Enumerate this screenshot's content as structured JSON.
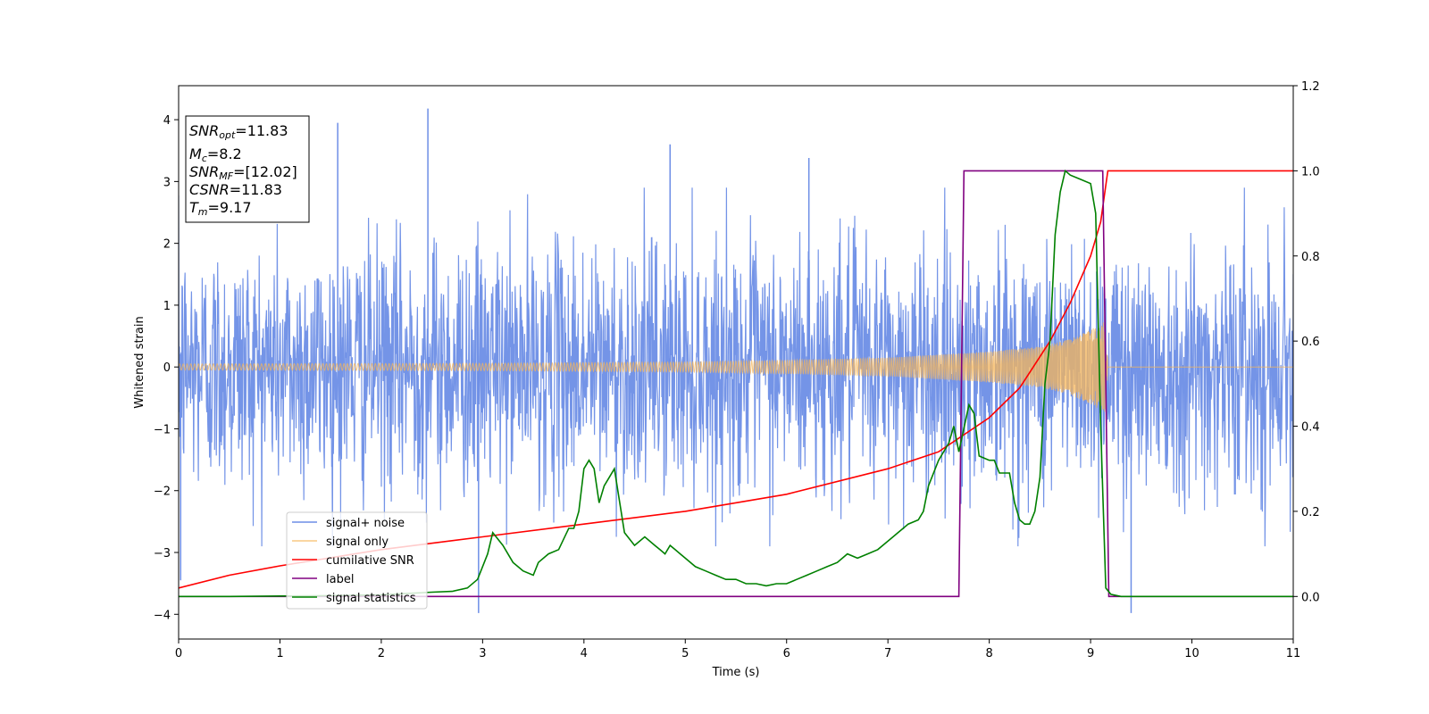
{
  "chart_data": {
    "type": "line",
    "xlabel": "Time (s)",
    "ylabel": "Whitened strain",
    "xlim": [
      0,
      11
    ],
    "ylim": [
      -4.4,
      4.55
    ],
    "y2lim": [
      -0.1,
      1.2
    ],
    "xticks": [
      "0",
      "1",
      "2",
      "3",
      "4",
      "5",
      "6",
      "7",
      "8",
      "9",
      "10",
      "11"
    ],
    "yticks": [
      "−4",
      "−3",
      "−2",
      "−1",
      "0",
      "1",
      "2",
      "3",
      "4"
    ],
    "y2ticks": [
      "0.0",
      "0.2",
      "0.4",
      "0.6",
      "0.8",
      "1.0",
      "1.2"
    ],
    "grid": false,
    "legend_position": "lower-left",
    "annotation": {
      "snr_opt": {
        "main": "SNR",
        "sub": "opt",
        "value": "=11.83"
      },
      "mc": {
        "main": "M",
        "sub": "c",
        "value": "=8.2"
      },
      "snr_mf": {
        "main": "SNR",
        "sub": "MF",
        "value": "=[12.02]"
      },
      "csnr": {
        "main": "CSNR",
        "value": "=11.83"
      },
      "tm": {
        "main": "T",
        "sub": "m",
        "value": "=9.17"
      }
    },
    "series": [
      {
        "name": "signal+ noise",
        "axis": "left",
        "color": "#6d8ee6",
        "description_points": {
          "x_range": [
            0,
            11
          ],
          "amplitude_envelope": [
            -3.9,
            4.15
          ]
        },
        "spikes": [
          {
            "x": 1.57,
            "y": 3.95
          },
          {
            "x": 2.46,
            "y": 4.18
          },
          {
            "x": 4.85,
            "y": 3.6
          },
          {
            "x": 6.22,
            "y": 3.38
          },
          {
            "x": 2.96,
            "y": -3.98
          },
          {
            "x": 9.4,
            "y": -3.98
          },
          {
            "x": 0.02,
            "y": -3.45
          }
        ]
      },
      {
        "name": "signal only",
        "axis": "left",
        "color": "#f5b55a",
        "envelope": [
          [
            0,
            0.05
          ],
          [
            3,
            0.06
          ],
          [
            5,
            0.08
          ],
          [
            6,
            0.11
          ],
          [
            7,
            0.15
          ],
          [
            8,
            0.25
          ],
          [
            8.5,
            0.33
          ],
          [
            8.8,
            0.45
          ],
          [
            9.0,
            0.6
          ],
          [
            9.1,
            0.7
          ],
          [
            9.16,
            0.78
          ],
          [
            9.17,
            0.0
          ],
          [
            11,
            0.0
          ]
        ]
      },
      {
        "name": "cumilative SNR",
        "axis": "right",
        "color": "#ff0000",
        "x": [
          0,
          0.5,
          1,
          2,
          3,
          4,
          5,
          6,
          7,
          7.5,
          8,
          8.3,
          8.6,
          8.8,
          9.0,
          9.1,
          9.17,
          9.18,
          11
        ],
        "values": [
          0.02,
          0.05,
          0.072,
          0.11,
          0.14,
          0.17,
          0.2,
          0.24,
          0.3,
          0.34,
          0.42,
          0.49,
          0.6,
          0.69,
          0.8,
          0.88,
          1.0,
          1.0,
          1.0
        ]
      },
      {
        "name": "label",
        "axis": "right",
        "color": "#800080",
        "x": [
          0,
          7.7,
          7.75,
          9.12,
          9.18,
          11
        ],
        "values": [
          0,
          0,
          1,
          1,
          0,
          0
        ]
      },
      {
        "name": "signal statistics",
        "axis": "right",
        "color": "#008000",
        "x": [
          0,
          0.5,
          1,
          1.5,
          2,
          2.5,
          2.7,
          2.85,
          2.95,
          3.05,
          3.1,
          3.2,
          3.3,
          3.4,
          3.5,
          3.55,
          3.65,
          3.75,
          3.85,
          3.9,
          3.95,
          4.0,
          4.05,
          4.1,
          4.15,
          4.2,
          4.25,
          4.3,
          4.4,
          4.5,
          4.6,
          4.7,
          4.75,
          4.8,
          4.85,
          4.9,
          5.0,
          5.1,
          5.2,
          5.3,
          5.4,
          5.5,
          5.6,
          5.7,
          5.8,
          5.9,
          6.0,
          6.1,
          6.2,
          6.3,
          6.4,
          6.5,
          6.6,
          6.7,
          6.8,
          6.9,
          7.0,
          7.05,
          7.1,
          7.15,
          7.2,
          7.3,
          7.35,
          7.4,
          7.5,
          7.6,
          7.65,
          7.7,
          7.8,
          7.85,
          7.9,
          8.0,
          8.05,
          8.1,
          8.2,
          8.25,
          8.3,
          8.35,
          8.4,
          8.45,
          8.5,
          8.55,
          8.6,
          8.65,
          8.7,
          8.75,
          8.8,
          8.9,
          9.0,
          9.05,
          9.1,
          9.15,
          9.2,
          9.3,
          10,
          11
        ],
        "values": [
          0,
          0,
          0.001,
          0.002,
          0.004,
          0.01,
          0.012,
          0.02,
          0.04,
          0.1,
          0.15,
          0.12,
          0.08,
          0.06,
          0.05,
          0.08,
          0.1,
          0.11,
          0.16,
          0.16,
          0.2,
          0.3,
          0.32,
          0.3,
          0.22,
          0.26,
          0.28,
          0.3,
          0.15,
          0.12,
          0.14,
          0.12,
          0.11,
          0.1,
          0.12,
          0.11,
          0.09,
          0.07,
          0.06,
          0.05,
          0.04,
          0.04,
          0.03,
          0.03,
          0.025,
          0.03,
          0.03,
          0.04,
          0.05,
          0.06,
          0.07,
          0.08,
          0.1,
          0.09,
          0.1,
          0.11,
          0.13,
          0.14,
          0.15,
          0.16,
          0.17,
          0.18,
          0.2,
          0.26,
          0.32,
          0.36,
          0.4,
          0.34,
          0.45,
          0.43,
          0.33,
          0.32,
          0.32,
          0.29,
          0.29,
          0.22,
          0.18,
          0.17,
          0.17,
          0.2,
          0.28,
          0.5,
          0.6,
          0.85,
          0.95,
          1.0,
          0.99,
          0.98,
          0.97,
          0.9,
          0.4,
          0.02,
          0.005,
          0,
          0,
          0
        ]
      }
    ]
  }
}
